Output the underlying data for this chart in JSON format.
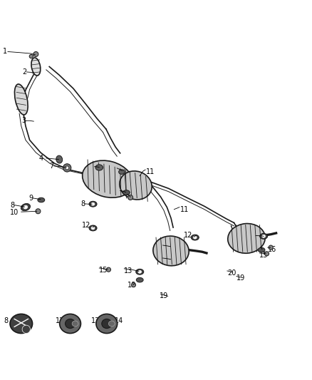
{
  "bg_color": "#ffffff",
  "fig_width": 4.38,
  "fig_height": 5.33,
  "dpi": 100,
  "color_main": "#1a1a1a",
  "lw_main": 1.2,
  "lw_thin": 0.7,
  "label_fs": 7.0
}
